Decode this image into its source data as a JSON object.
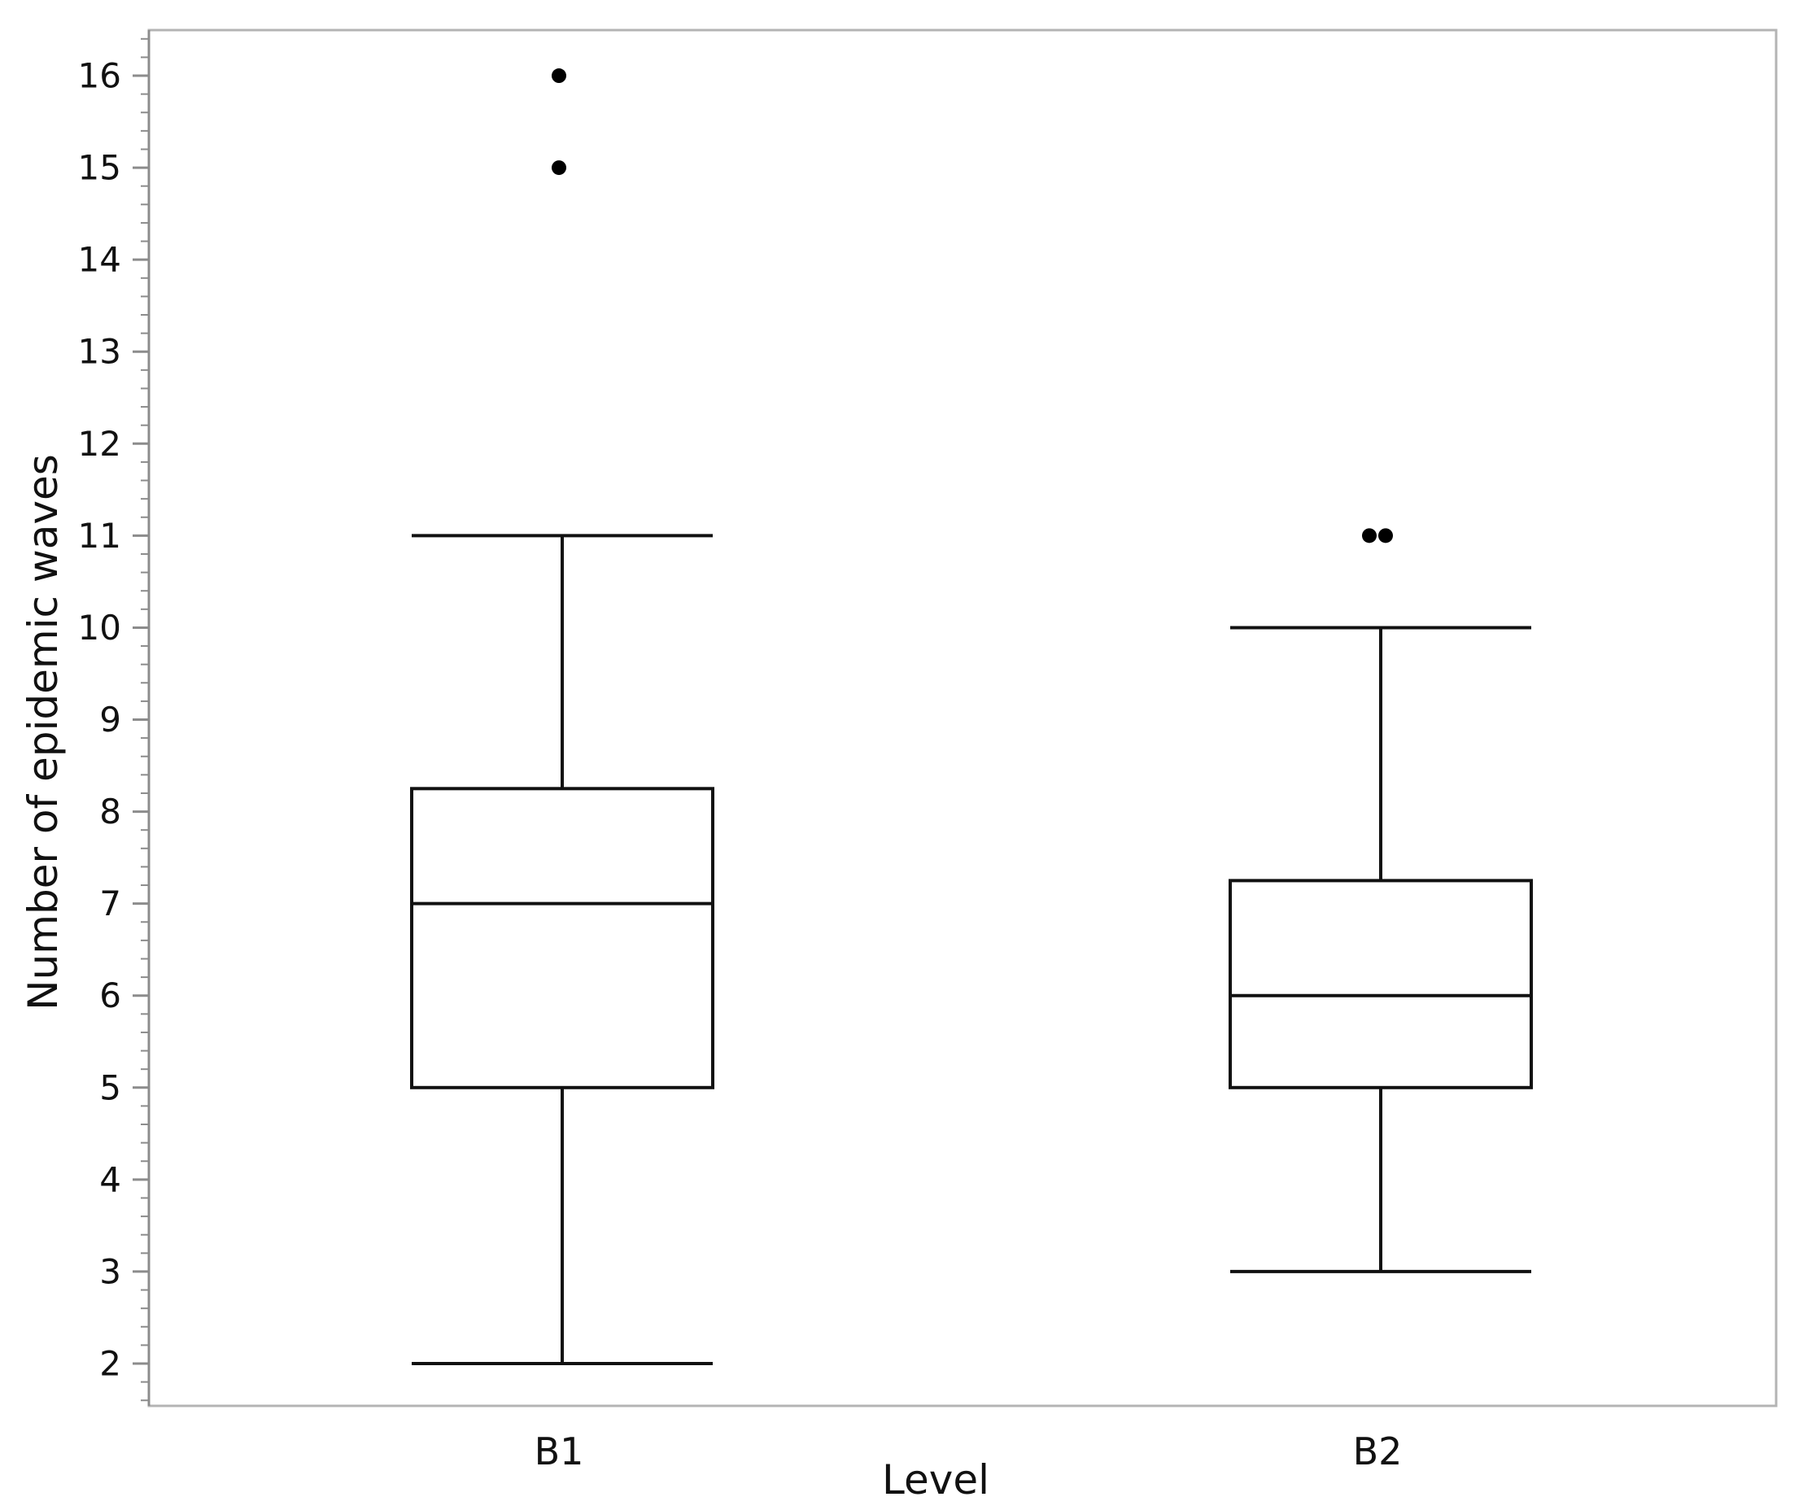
{
  "chart_data": {
    "type": "box",
    "xlabel": "Level",
    "ylabel": "Number of epidemic waves",
    "ylim": [
      1.5,
      16.5
    ],
    "y_ticks": [
      2,
      3,
      4,
      5,
      6,
      7,
      8,
      9,
      10,
      11,
      12,
      13,
      14,
      15,
      16
    ],
    "y_tick_labels": [
      "2",
      "3",
      "4",
      "5",
      "6",
      "7",
      "8",
      "9",
      "10",
      "11",
      "12",
      "13",
      "14",
      "15",
      "16"
    ],
    "grid": false,
    "categories": [
      "B1",
      "B2"
    ],
    "boxes": [
      {
        "category": "B1",
        "whisker_low": 2,
        "q1": 5,
        "median": 7,
        "q3": 8.25,
        "whisker_high": 11,
        "outliers": [
          15,
          16
        ]
      },
      {
        "category": "B2",
        "whisker_low": 3,
        "q1": 5,
        "median": 6,
        "q3": 7.25,
        "whisker_high": 10,
        "outliers": [
          11,
          11
        ]
      }
    ]
  },
  "colors": {
    "line": "#111111",
    "frame": "#b4b4b4",
    "axis": "#8c8c8c",
    "point": "#000000",
    "background": "#ffffff"
  }
}
